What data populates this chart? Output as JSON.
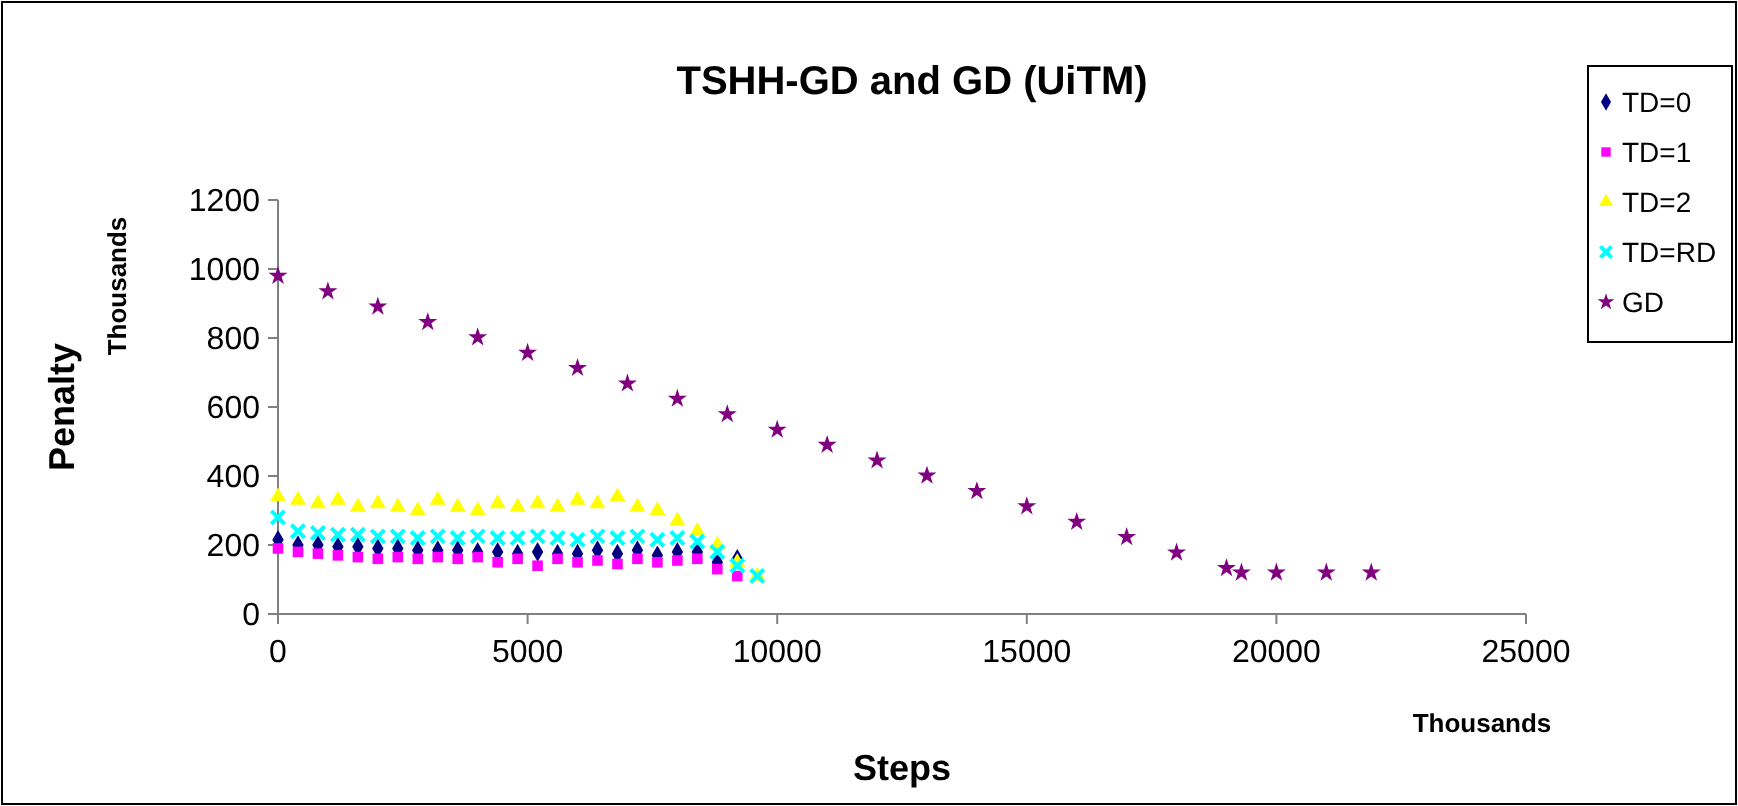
{
  "chart_data": {
    "type": "scatter",
    "title": "TSHH-GD and GD (UiTM)",
    "xlabel": "Steps",
    "ylabel": "Penalty",
    "annotations": [
      "Thousands",
      "Thousands"
    ],
    "xlim": [
      0,
      25000
    ],
    "xticks": [
      0,
      5000,
      10000,
      15000,
      20000,
      25000
    ],
    "ylim": [
      0,
      1200
    ],
    "yticks": [
      0,
      200,
      400,
      600,
      800,
      1000,
      1200
    ],
    "grid": false,
    "legend": "top right",
    "series": [
      {
        "name": "TD=0",
        "color": "#000080",
        "marker": "diamond",
        "x": [
          0,
          400,
          800,
          1200,
          1600,
          2000,
          2400,
          2800,
          3200,
          3600,
          4000,
          4400,
          4800,
          5200,
          5600,
          6000,
          6400,
          6800,
          7200,
          7600,
          8000,
          8400,
          8800,
          9200
        ],
        "values": [
          215,
          200,
          200,
          195,
          195,
          190,
          190,
          185,
          185,
          185,
          180,
          180,
          175,
          180,
          175,
          175,
          185,
          175,
          185,
          170,
          180,
          180,
          150,
          160
        ]
      },
      {
        "name": "TD=1",
        "color": "#ff00ff",
        "marker": "square",
        "x": [
          0,
          400,
          800,
          1200,
          1600,
          2000,
          2400,
          2800,
          3200,
          3600,
          4000,
          4400,
          4800,
          5200,
          5600,
          6000,
          6400,
          6800,
          7200,
          7600,
          8000,
          8400,
          8800,
          9200
        ],
        "values": [
          190,
          180,
          175,
          170,
          165,
          160,
          165,
          160,
          165,
          160,
          165,
          150,
          160,
          140,
          160,
          150,
          155,
          145,
          160,
          150,
          155,
          160,
          130,
          110
        ]
      },
      {
        "name": "TD=2",
        "color": "#ffff00",
        "marker": "triangle",
        "x": [
          0,
          400,
          800,
          1200,
          1600,
          2000,
          2400,
          2800,
          3200,
          3600,
          4000,
          4400,
          4800,
          5200,
          5600,
          6000,
          6400,
          6800,
          7200,
          7600,
          8000,
          8400,
          8800,
          9200,
          9600
        ],
        "values": [
          340,
          330,
          320,
          330,
          310,
          320,
          310,
          300,
          330,
          310,
          300,
          320,
          310,
          320,
          310,
          330,
          320,
          340,
          310,
          300,
          270,
          240,
          200,
          150,
          110
        ]
      },
      {
        "name": "TD=RD",
        "color": "#00ffff",
        "marker": "cross",
        "x": [
          0,
          400,
          800,
          1200,
          1600,
          2000,
          2400,
          2800,
          3200,
          3600,
          4000,
          4400,
          4800,
          5200,
          5600,
          6000,
          6400,
          6800,
          7200,
          7600,
          8000,
          8400,
          8800,
          9200,
          9600
        ],
        "values": [
          280,
          240,
          235,
          230,
          230,
          225,
          225,
          220,
          225,
          220,
          225,
          220,
          220,
          225,
          220,
          215,
          225,
          220,
          225,
          215,
          220,
          210,
          180,
          140,
          110
        ]
      },
      {
        "name": "GD",
        "color": "#800080",
        "marker": "star",
        "x": [
          0,
          1000,
          2000,
          3000,
          4000,
          5000,
          6000,
          7000,
          8000,
          9000,
          10000,
          11000,
          12000,
          13000,
          14000,
          15000,
          16000,
          17000,
          18000,
          19000,
          19300,
          20000,
          21000,
          21900
        ],
        "values": [
          980,
          935,
          891,
          846,
          802,
          757,
          713,
          668,
          624,
          579,
          534,
          490,
          445,
          401,
          356,
          312,
          267,
          223,
          178,
          133,
          120,
          120,
          120,
          120
        ]
      }
    ]
  }
}
